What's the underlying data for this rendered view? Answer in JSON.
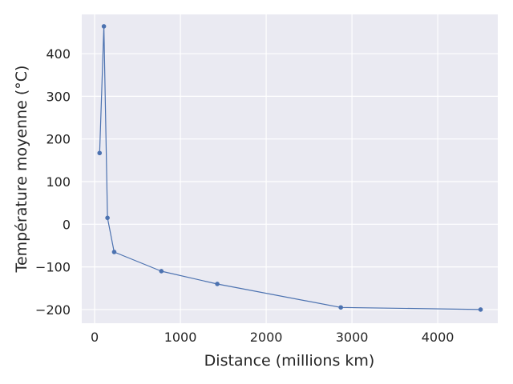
{
  "chart_data": {
    "type": "line",
    "title": "",
    "xlabel": "Distance (millions km)",
    "ylabel": "Température moyenne (°C)",
    "xlim": [
      -150,
      4700
    ],
    "ylim": [
      -232,
      492
    ],
    "xticks": [
      0,
      1000,
      2000,
      3000,
      4000
    ],
    "yticks": [
      -200,
      -100,
      0,
      100,
      200,
      300,
      400
    ],
    "grid": true,
    "series": [
      {
        "color": "#4c72b0",
        "points": [
          {
            "x": 58,
            "y": 167
          },
          {
            "x": 108,
            "y": 464
          },
          {
            "x": 150,
            "y": 15
          },
          {
            "x": 228,
            "y": -65
          },
          {
            "x": 778,
            "y": -110
          },
          {
            "x": 1430,
            "y": -140
          },
          {
            "x": 2870,
            "y": -195
          },
          {
            "x": 4500,
            "y": -200
          }
        ]
      }
    ]
  },
  "colors": {
    "plot_background": "#eaeaf2",
    "grid": "#ffffff",
    "text": "#262626"
  }
}
